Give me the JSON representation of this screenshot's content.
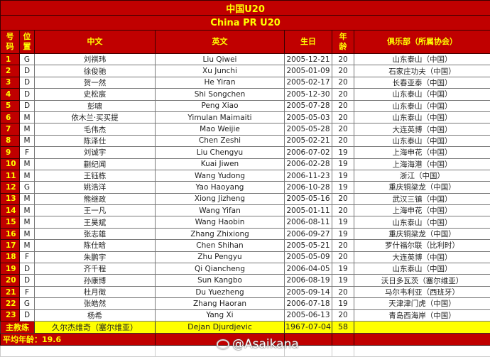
{
  "title": "中国U20",
  "subtitle": "China PR U20",
  "headers": {
    "num": "号码",
    "pos": "位置",
    "cn": "中文",
    "en": "英文",
    "birth": "生日",
    "age": "年龄",
    "club": "俱乐部（所属协会）"
  },
  "players": [
    {
      "num": "1",
      "pos": "G",
      "cn": "刘祺玮",
      "en": "Liu Qiwei",
      "birth": "2005-12-21",
      "age": "20",
      "club": "山东泰山（中国）"
    },
    {
      "num": "2",
      "pos": "D",
      "cn": "徐俊驰",
      "en": "Xu Junchi",
      "birth": "2005-01-09",
      "age": "20",
      "club": "石家庄功夫（中国）"
    },
    {
      "num": "3",
      "pos": "D",
      "cn": "贺一然",
      "en": "He Yiran",
      "birth": "2005-02-17",
      "age": "20",
      "club": "长春亚泰（中国）"
    },
    {
      "num": "4",
      "pos": "D",
      "cn": "史松宸",
      "en": "Shi Songchen",
      "birth": "2005-12-30",
      "age": "20",
      "club": "山东泰山（中国）"
    },
    {
      "num": "5",
      "pos": "D",
      "cn": "彭啸",
      "en": "Peng Xiao",
      "birth": "2005-07-28",
      "age": "20",
      "club": "山东泰山（中国）"
    },
    {
      "num": "6",
      "pos": "M",
      "cn": "依木兰·买买提",
      "en": "Yimulan Maimaiti",
      "birth": "2005-05-03",
      "age": "20",
      "club": "山东泰山（中国）"
    },
    {
      "num": "7",
      "pos": "M",
      "cn": "毛伟杰",
      "en": "Mao Weijie",
      "birth": "2005-05-28",
      "age": "20",
      "club": "大连英博（中国）"
    },
    {
      "num": "8",
      "pos": "M",
      "cn": "陈泽仕",
      "en": "Chen Zeshi",
      "birth": "2005-02-21",
      "age": "20",
      "club": "山东泰山（中国）"
    },
    {
      "num": "9",
      "pos": "F",
      "cn": "刘诚宇",
      "en": "Liu Chengyu",
      "birth": "2006-07-02",
      "age": "19",
      "club": "上海申花（中国）"
    },
    {
      "num": "10",
      "pos": "M",
      "cn": "蒯纪闻",
      "en": "Kuai Jiwen",
      "birth": "2006-02-28",
      "age": "19",
      "club": "上海海港（中国）"
    },
    {
      "num": "11",
      "pos": "M",
      "cn": "王钰栋",
      "en": "Wang Yudong",
      "birth": "2006-11-23",
      "age": "19",
      "club": "浙江（中国）"
    },
    {
      "num": "12",
      "pos": "G",
      "cn": "姚浩洋",
      "en": "Yao Haoyang",
      "birth": "2006-10-28",
      "age": "19",
      "club": "重庆铜梁龙（中国）"
    },
    {
      "num": "13",
      "pos": "M",
      "cn": "熊继政",
      "en": "Xiong Jizheng",
      "birth": "2005-05-16",
      "age": "20",
      "club": "武汉三镇（中国）"
    },
    {
      "num": "14",
      "pos": "M",
      "cn": "王一凡",
      "en": "Wang Yifan",
      "birth": "2005-01-11",
      "age": "20",
      "club": "上海申花（中国）"
    },
    {
      "num": "15",
      "pos": "M",
      "cn": "王昊斌",
      "en": "Wang Haobin",
      "birth": "2006-08-11",
      "age": "19",
      "club": "山东泰山（中国）"
    },
    {
      "num": "16",
      "pos": "M",
      "cn": "张志雄",
      "en": "Zhang Zhixiong",
      "birth": "2006-09-27",
      "age": "19",
      "club": "重庆铜梁龙（中国）"
    },
    {
      "num": "17",
      "pos": "M",
      "cn": "陈仕晗",
      "en": "Chen Shihan",
      "birth": "2005-05-21",
      "age": "20",
      "club": "罗什福尔联（比利时）"
    },
    {
      "num": "18",
      "pos": "F",
      "cn": "朱鹏宇",
      "en": "Zhu Pengyu",
      "birth": "2005-05-09",
      "age": "20",
      "club": "大连英博（中国）"
    },
    {
      "num": "19",
      "pos": "D",
      "cn": "齐千程",
      "en": "Qi Qiancheng",
      "birth": "2006-04-05",
      "age": "19",
      "club": "山东泰山（中国）"
    },
    {
      "num": "20",
      "pos": "D",
      "cn": "孙康博",
      "en": "Sun Kangbo",
      "birth": "2006-08-19",
      "age": "19",
      "club": "沃日多瓦茨（塞尔维亚）"
    },
    {
      "num": "21",
      "pos": "F",
      "cn": "杜月徵",
      "en": "Du Yuezheng",
      "birth": "2005-09-14",
      "age": "20",
      "club": "马尔韦利亚（西班牙）"
    },
    {
      "num": "22",
      "pos": "G",
      "cn": "张皓然",
      "en": "Zhang Haoran",
      "birth": "2006-07-18",
      "age": "19",
      "club": "天津津门虎（中国）"
    },
    {
      "num": "23",
      "pos": "D",
      "cn": "杨希",
      "en": "Yang Xi",
      "birth": "2005-06-13",
      "age": "20",
      "club": "青岛西海岸（中国）"
    }
  ],
  "coach": {
    "label": "主教练",
    "cn": "久尔杰维奇（塞尔维亚）",
    "en": "Dejan Djurdjevic",
    "birth": "1967-07-04",
    "age": "58",
    "club": ""
  },
  "average": {
    "label": "平均年龄：19.6"
  },
  "watermark": "@Asaikana",
  "colors": {
    "header_bg": "#c00000",
    "header_text": "#ffff00",
    "coach_bg": "#ffff00"
  }
}
